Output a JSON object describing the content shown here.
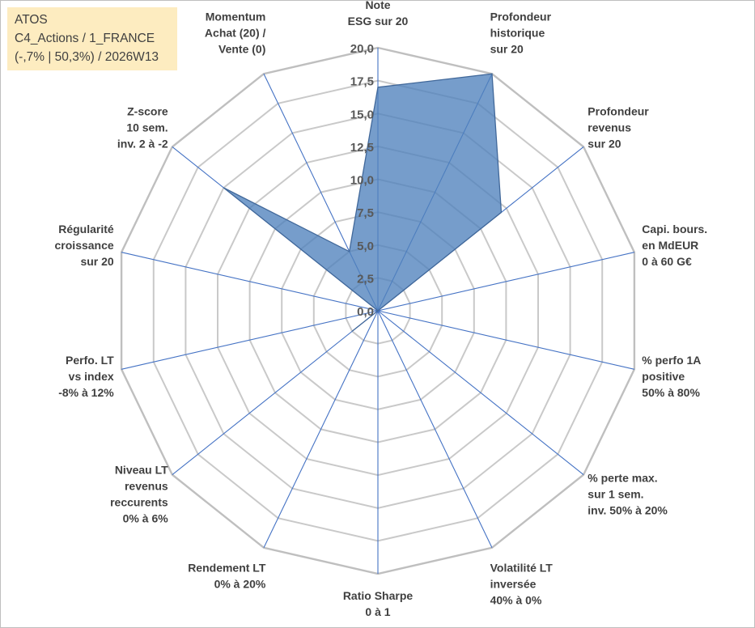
{
  "info": {
    "line1": "ATOS",
    "line2": "C4_Actions / 1_FRANCE",
    "line3": "(-,7% | 50,3%) / 2026W13"
  },
  "colors": {
    "fill": "#4f81bd",
    "stroke": "#41689a",
    "spokes": "#4472c4",
    "grid": "#c9c9c9",
    "outer_ring": "#bfbfbf",
    "info_bg": "#fdecc0"
  },
  "chart_data": {
    "type": "radar",
    "rmin": 0,
    "rmax": 20,
    "tick_step": 2.5,
    "tick_labels": [
      "0,0",
      "2,5",
      "5,0",
      "7,5",
      "10,0",
      "12,5",
      "15,0",
      "17,5",
      "20,0"
    ],
    "axes": [
      [
        "Note",
        "ESG sur 20"
      ],
      [
        "Profondeur",
        "historique",
        "sur 20"
      ],
      [
        "Profondeur",
        "revenus",
        "sur 20"
      ],
      [
        "Capi. bours.",
        "en MdEUR",
        "0 à 60 G€"
      ],
      [
        "% perfo 1A",
        "positive",
        "50% à 80%"
      ],
      [
        "% perte max.",
        "sur 1 sem.",
        "inv. 50% à 20%"
      ],
      [
        "Volatilité LT",
        "inversée",
        "40% à 0%"
      ],
      [
        "Ratio Sharpe",
        "0 à 1"
      ],
      [
        "Rendement LT",
        "0% à 20%"
      ],
      [
        "Niveau LT",
        "revenus",
        "reccurents",
        "0% à 6%"
      ],
      [
        "Perfo. LT",
        "vs index",
        "-8% à 12%"
      ],
      [
        "Régularité",
        "croissance",
        "sur 20"
      ],
      [
        "Z-score",
        "10 sem.",
        "inv. 2 à -2"
      ],
      [
        "Momentum",
        "Achat (20) /",
        "Vente (0)"
      ]
    ],
    "values": [
      17,
      20,
      12,
      0,
      0,
      0,
      0,
      0,
      0,
      2.5,
      0,
      0,
      15,
      5
    ],
    "grid": true,
    "legend": "none"
  }
}
